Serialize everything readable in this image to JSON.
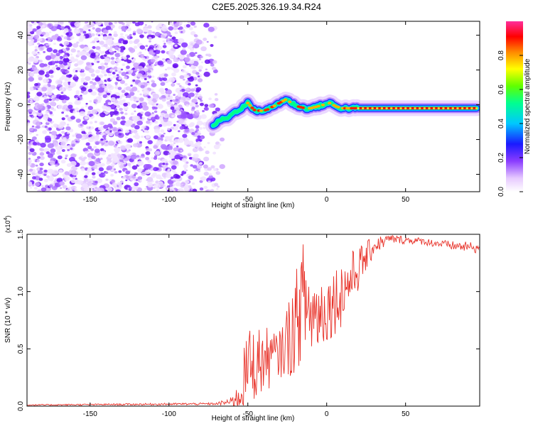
{
  "title": "C2E5.2025.326.19.34.R24",
  "chart_data": [
    {
      "type": "heatmap",
      "xlabel": "Height of straight line (km)",
      "ylabel": "Frequency (Hz)",
      "xlim": [
        -190,
        97
      ],
      "ylim": [
        -50,
        48
      ],
      "xticks": [
        -150,
        -100,
        -50,
        0,
        50
      ],
      "yticks": [
        -40,
        -20,
        0,
        20,
        40
      ],
      "noise_region_x": [
        -190,
        -65
      ],
      "ridge": {
        "x": [
          -72,
          -68,
          -62,
          -58,
          -54,
          -50,
          -46,
          -42,
          -38,
          -34,
          -30,
          -26,
          -22,
          -18,
          -14,
          -10,
          -6,
          -2,
          2,
          6,
          10,
          20,
          40,
          60,
          80,
          95
        ],
        "y": [
          -12,
          -9,
          -7,
          -4,
          -2,
          1,
          -3,
          -3.5,
          -3,
          -1,
          1,
          3,
          1,
          -1,
          -2,
          -2,
          -1,
          0,
          1,
          -1,
          -2,
          -2,
          -2,
          -2,
          -2,
          -2
        ]
      },
      "colorbar": {
        "label": "Normalized spectral amplitude",
        "ticks": [
          "0.0",
          "0.2",
          "0.4",
          "0.6",
          "0.8"
        ],
        "range": [
          0,
          1
        ]
      }
    },
    {
      "type": "line",
      "xlabel": "Height of straight line (km)",
      "ylabel": "SNR (10 * v/v)",
      "ymultiplier": "(x10",
      "ymultiplier_exp": "4",
      "xlim": [
        -190,
        97
      ],
      "ylim": [
        0,
        1.5
      ],
      "xticks": [
        -150,
        -100,
        -50,
        0,
        50
      ],
      "yticks": [
        "0.0",
        "0.5",
        "1.0",
        "1.5"
      ],
      "color": "#e8332a",
      "envelope": {
        "x": [
          -190,
          -70,
          -60,
          -55,
          -50,
          -40,
          -30,
          -20,
          -15,
          -10,
          0,
          10,
          20,
          30,
          40,
          60,
          80,
          97
        ],
        "y": [
          0.01,
          0.02,
          0.04,
          0.1,
          0.35,
          0.4,
          0.45,
          0.7,
          0.95,
          0.8,
          0.85,
          1.0,
          1.2,
          1.4,
          1.46,
          1.44,
          1.4,
          1.38
        ],
        "noise_amplitude": [
          0.005,
          0.01,
          0.04,
          0.2,
          0.35,
          0.3,
          0.2,
          0.45,
          0.5,
          0.4,
          0.3,
          0.3,
          0.2,
          0.08,
          0.04,
          0.03,
          0.04,
          0.05
        ]
      }
    }
  ]
}
